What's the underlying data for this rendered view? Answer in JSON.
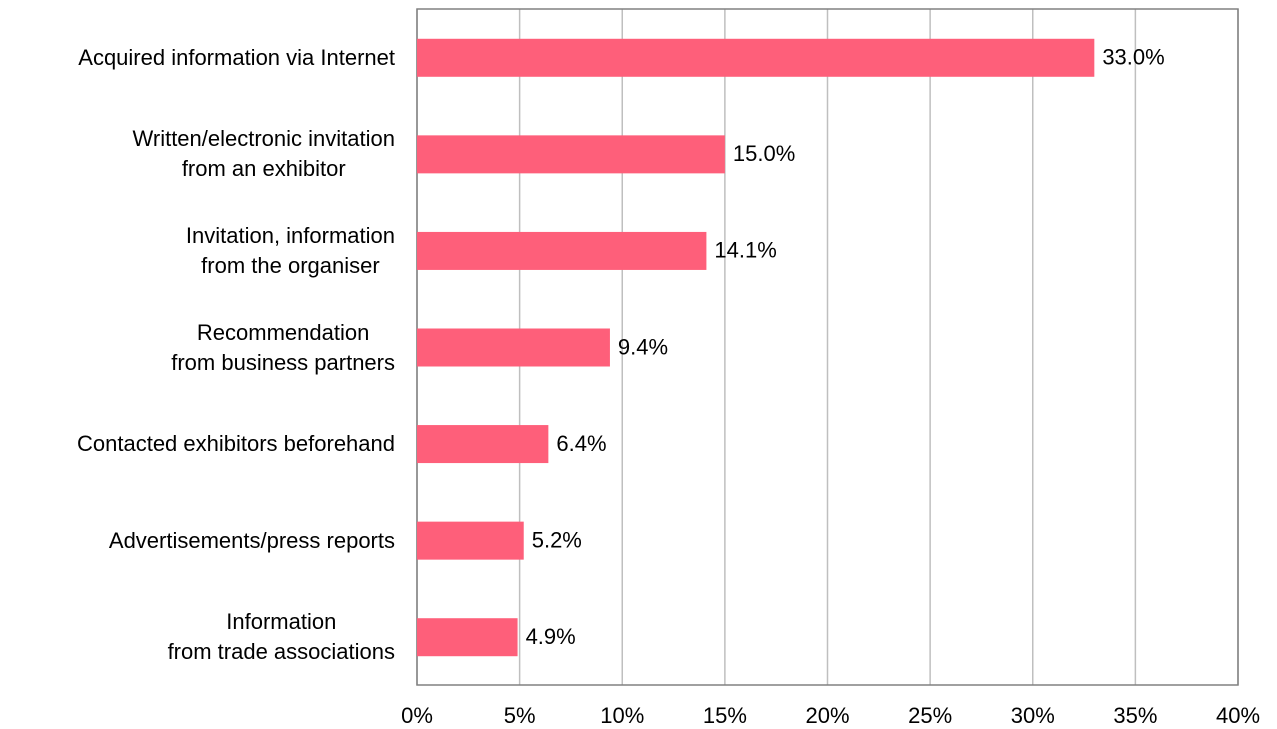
{
  "chart_data": {
    "type": "bar",
    "orientation": "horizontal",
    "categories": [
      "Acquired information via Internet",
      "Written/electronic invitation\nfrom an exhibitor",
      "Invitation, information\nfrom the organiser",
      "Recommendation\nfrom business partners",
      "Contacted exhibitors beforehand",
      "Advertisements/press reports",
      "Information\nfrom trade associations"
    ],
    "values": [
      33.0,
      15.0,
      14.1,
      9.4,
      6.4,
      5.2,
      4.9
    ],
    "value_labels": [
      "33.0%",
      "15.0%",
      "14.1%",
      "9.4%",
      "6.4%",
      "5.2%",
      "4.9%"
    ],
    "color": "#fe5f7a",
    "xlim": [
      0,
      40
    ],
    "xticks": [
      {
        "value": 0,
        "label": "0%"
      },
      {
        "value": 5,
        "label": "5%"
      },
      {
        "value": 10,
        "label": "10%"
      },
      {
        "value": 15,
        "label": "15%"
      },
      {
        "value": 20,
        "label": "20%"
      },
      {
        "value": 25,
        "label": "25%"
      },
      {
        "value": 30,
        "label": "30%"
      },
      {
        "value": 35,
        "label": "35%"
      },
      {
        "value": 40,
        "label": "40%"
      }
    ],
    "grid": true
  }
}
